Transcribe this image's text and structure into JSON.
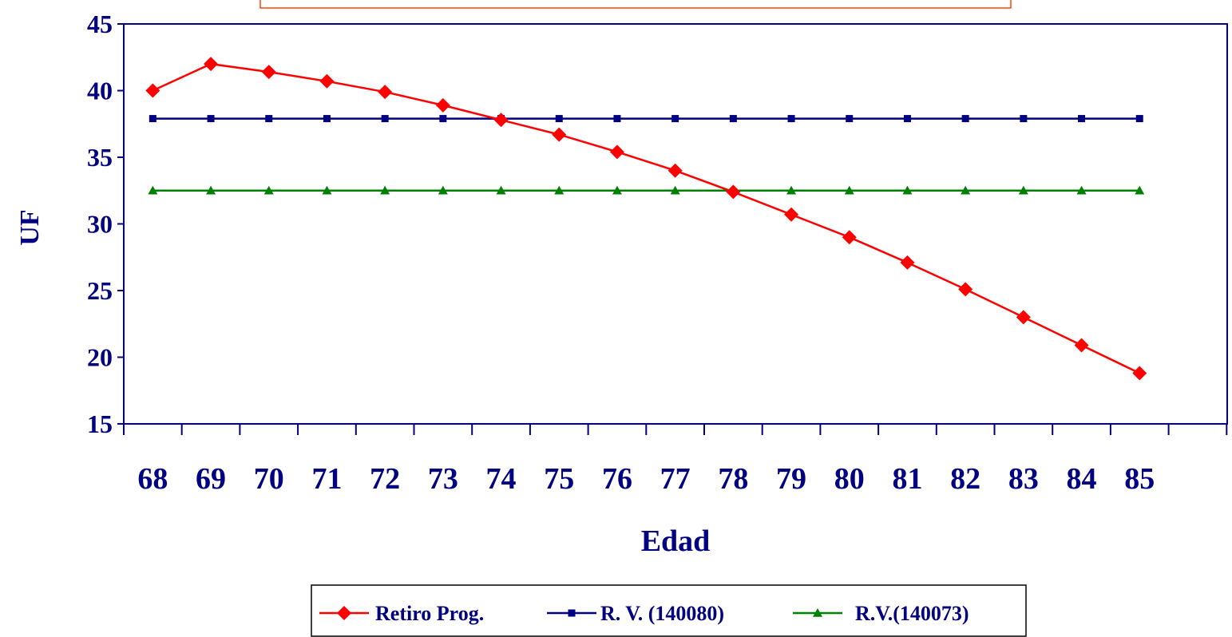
{
  "chart_data": {
    "type": "line",
    "title": "",
    "xlabel": "Edad",
    "ylabel": "UF",
    "x": [
      68,
      69,
      70,
      71,
      72,
      73,
      74,
      75,
      76,
      77,
      78,
      79,
      80,
      81,
      82,
      83,
      84,
      85
    ],
    "ylim": [
      15,
      45
    ],
    "yticks": [
      15,
      20,
      25,
      30,
      35,
      40,
      45
    ],
    "grid": false,
    "legend_position": "bottom",
    "series": [
      {
        "name": "Retiro Prog.",
        "color": "#ff0000",
        "marker": "diamond",
        "values": [
          40.0,
          42.0,
          41.4,
          40.7,
          39.9,
          38.9,
          37.8,
          36.7,
          35.4,
          34.0,
          32.4,
          30.7,
          29.0,
          27.1,
          25.1,
          23.0,
          20.9,
          18.8
        ]
      },
      {
        "name": "R. V. (140080)",
        "color": "#000080",
        "marker": "square",
        "values": [
          37.9,
          37.9,
          37.9,
          37.9,
          37.9,
          37.9,
          37.9,
          37.9,
          37.9,
          37.9,
          37.9,
          37.9,
          37.9,
          37.9,
          37.9,
          37.9,
          37.9,
          37.9
        ]
      },
      {
        "name": "R.V.(140073)",
        "color": "#008000",
        "marker": "triangle",
        "values": [
          32.5,
          32.5,
          32.5,
          32.5,
          32.5,
          32.5,
          32.5,
          32.5,
          32.5,
          32.5,
          32.5,
          32.5,
          32.5,
          32.5,
          32.5,
          32.5,
          32.5,
          32.5
        ]
      }
    ],
    "colors": {
      "axis": "#000080",
      "title_box_border": "#ff4500"
    }
  }
}
